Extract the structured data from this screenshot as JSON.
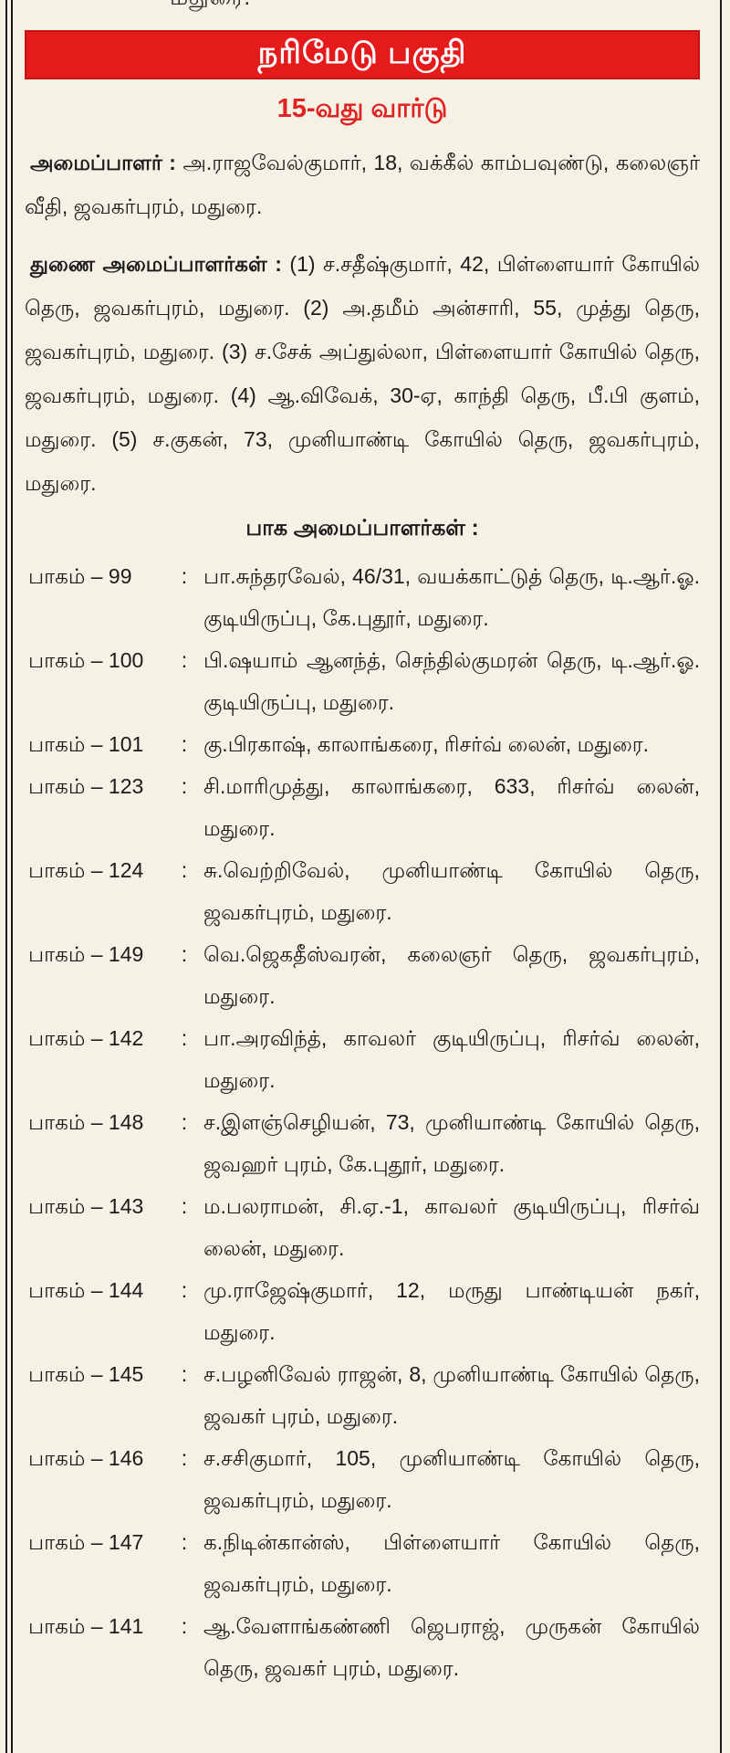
{
  "page": {
    "top_partial_text": "மதுரை.",
    "banner": {
      "title": "நரிமேடு பகுதி"
    },
    "ward_heading": "15-வது வார்டு",
    "organizer": {
      "label": "அமைப்பாளர் :",
      "text": "அ.ராஜவேல்குமார், 18, வக்கீல் காம்பவுண்டு, கலைஞர் வீதி, ஜவகர்புரம், மதுரை."
    },
    "deputy_organizers": {
      "label": "துணை அமைப்பாளர்கள் :",
      "text": "(1) ச.சதீஷ்குமார், 42, பிள்ளையார் கோயில் தெரு, ஜவகர்புரம், மதுரை. (2) அ.தமீம் அன்சாரி, 55, முத்து தெரு, ஜவகர்புரம், மதுரை. (3) ச.சேக் அப்துல்லா, பிள்ளையார் கோயில் தெரு, ஜவகர்புரம், மதுரை. (4) ஆ.விவேக், 30-ஏ, காந்தி தெரு, பீ.பி குளம், மதுரை. (5) ச.குகன், 73, முனியாண்டி கோயில் தெரு, ஜவகர்புரம், மதுரை."
    },
    "part_organizers_heading": "பாக அமைப்பாளர்கள் :",
    "parts": {
      "separator": ":",
      "items": [
        {
          "label": "பாகம் – 99",
          "detail": "பா.சுந்தரவேல், 46/31, வயக்காட்டுத் தெரு, டி.ஆர்.ஓ. குடியிருப்பு, கே.புதூர், மதுரை."
        },
        {
          "label": "பாகம் – 100",
          "detail": "பி.ஷயாம் ஆனந்த், செந்தில்குமரன் தெரு, டி.ஆர்.ஓ. குடியிருப்பு, மதுரை."
        },
        {
          "label": "பாகம் – 101",
          "detail": "கு.பிரகாஷ், காலாங்கரை, ரிசர்வ் லைன், மதுரை."
        },
        {
          "label": "பாகம் – 123",
          "detail": "சி.மாரிமுத்து, காலாங்கரை, 633, ரிசர்வ் லைன், மதுரை."
        },
        {
          "label": "பாகம் – 124",
          "detail": "சு.வெற்றிவேல், முனியாண்டி கோயில் தெரு, ஜவகர்புரம், மதுரை."
        },
        {
          "label": "பாகம் – 149",
          "detail": "வெ.ஜெகதீஸ்வரன், கலைஞர் தெரு, ஜவகர்புரம், மதுரை."
        },
        {
          "label": "பாகம் – 142",
          "detail": "பா.அரவிந்த், காவலர் குடியிருப்பு, ரிசர்வ் லைன், மதுரை."
        },
        {
          "label": "பாகம் – 148",
          "detail": "ச.இளஞ்செழியன், 73, முனியாண்டி கோயில் தெரு, ஜவஹர் புரம், கே.புதூர், மதுரை."
        },
        {
          "label": "பாகம் – 143",
          "detail": "ம.பலராமன், சி.ஏ.-1, காவலர் குடியிருப்பு, ரிசர்வ் லைன், மதுரை."
        },
        {
          "label": "பாகம் – 144",
          "detail": "மு.ராஜேஷ்குமார், 12, மருது பாண்டியன் நகர், மதுரை."
        },
        {
          "label": "பாகம் – 145",
          "detail": "ச.பழனிவேல் ராஜன், 8, முனியாண்டி கோயில் தெரு, ஜவகர் புரம், மதுரை."
        },
        {
          "label": "பாகம் – 146",
          "detail": "ச.சசிகுமார், 105, முனியாண்டி கோயில் தெரு, ஜவகர்புரம், மதுரை."
        },
        {
          "label": "பாகம் – 147",
          "detail": "க.நிடின்கான்ஸ், பிள்ளையார் கோயில் தெரு, ஜவகர்புரம், மதுரை."
        },
        {
          "label": "பாகம் – 141",
          "detail": "ஆ.வேளாங்கண்ணி ஜெபராஜ், முருகன் கோயில் தெரு, ஜவகர் புரம், மதுரை."
        }
      ]
    },
    "colors": {
      "banner_red": "#e41a1b",
      "heading_red": "#e02322",
      "background": "#f5f1e4",
      "text": "#1b1b1b"
    }
  }
}
